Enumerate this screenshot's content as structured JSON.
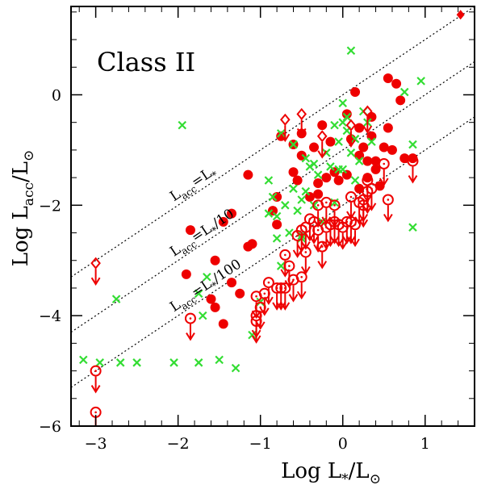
{
  "chart_data": {
    "type": "scatter",
    "title": "",
    "panel_label": "Class II",
    "xlabel": "Log L_*/L_⊙",
    "ylabel": "Log L_acc/L_⊙",
    "xlim": [
      -3.3,
      1.6
    ],
    "ylim": [
      -6.0,
      1.6
    ],
    "x_ticks": [
      -3,
      -2,
      -1,
      0,
      1
    ],
    "y_ticks": [
      -6,
      -4,
      -2,
      0
    ],
    "x_tick_labels": [
      "−3",
      "−2",
      "−1",
      "0",
      "1"
    ],
    "y_tick_labels": [
      "−6",
      "−4",
      "−2",
      "0"
    ],
    "grid": false,
    "reference_lines": [
      {
        "label_base": "L",
        "label_sub": "acc",
        "label_mid": "=L",
        "label_star": "*",
        "label_suffix": "",
        "offset": 0
      },
      {
        "label_base": "L",
        "label_sub": "acc",
        "label_mid": "=L",
        "label_star": "*",
        "label_suffix": "/10",
        "offset": -1
      },
      {
        "label_base": "L",
        "label_sub": "acc",
        "label_mid": "=L",
        "label_star": "*",
        "label_suffix": "/100",
        "offset": -2
      }
    ],
    "series": [
      {
        "marker": "filled-circle",
        "color": "#ee0000",
        "points": [
          [
            -0.75,
            -0.75
          ],
          [
            -0.6,
            -1.4
          ],
          [
            -0.5,
            -0.7
          ],
          [
            -0.3,
            -1.8
          ],
          [
            -0.25,
            -0.55
          ],
          [
            -0.2,
            -1.5
          ],
          [
            -0.15,
            -0.85
          ],
          [
            -0.1,
            -1.4
          ],
          [
            -0.05,
            -1.55
          ],
          [
            0.05,
            -0.35
          ],
          [
            0.1,
            -0.8
          ],
          [
            0.15,
            0.05
          ],
          [
            0.2,
            -1.1
          ],
          [
            0.25,
            -0.95
          ],
          [
            0.3,
            -1.2
          ],
          [
            0.35,
            -0.4
          ],
          [
            0.4,
            -1.2
          ],
          [
            0.45,
            -1.65
          ],
          [
            0.5,
            -0.95
          ],
          [
            0.55,
            0.3
          ],
          [
            0.6,
            -1.0
          ],
          [
            0.65,
            0.2
          ],
          [
            0.7,
            -0.1
          ],
          [
            0.75,
            -1.15
          ],
          [
            0.85,
            -1.15
          ],
          [
            -0.5,
            -1.1
          ],
          [
            -0.35,
            -0.95
          ],
          [
            0.2,
            -0.6
          ],
          [
            0.3,
            -1.5
          ],
          [
            -1.15,
            -1.45
          ],
          [
            -1.1,
            -2.7
          ],
          [
            -1.15,
            -2.75
          ],
          [
            -1.35,
            -2.15
          ],
          [
            -1.45,
            -2.3
          ],
          [
            -1.35,
            -3.4
          ],
          [
            -1.55,
            -3.0
          ],
          [
            -1.6,
            -3.7
          ],
          [
            -1.55,
            -3.85
          ],
          [
            -1.9,
            -3.25
          ],
          [
            -1.85,
            -2.45
          ],
          [
            -1.25,
            -3.6
          ],
          [
            -1.45,
            -4.15
          ],
          [
            -0.8,
            -1.85
          ],
          [
            -0.8,
            -2.35
          ],
          [
            -0.55,
            -1.55
          ],
          [
            -0.85,
            -2.1
          ],
          [
            0.05,
            -1.45
          ],
          [
            0.2,
            -1.7
          ],
          [
            -0.3,
            -1.6
          ],
          [
            -0.4,
            -1.85
          ],
          [
            0.4,
            -1.35
          ],
          [
            -0.6,
            -0.9
          ],
          [
            0.35,
            -0.75
          ],
          [
            0.55,
            -0.6
          ]
        ]
      },
      {
        "marker": "cross",
        "color": "#33dd33",
        "points": [
          [
            -3.15,
            -4.8
          ],
          [
            -2.95,
            -4.85
          ],
          [
            -2.75,
            -3.7
          ],
          [
            -2.7,
            -4.85
          ],
          [
            -2.5,
            -4.85
          ],
          [
            -2.05,
            -4.85
          ],
          [
            -1.75,
            -4.85
          ],
          [
            -1.5,
            -4.8
          ],
          [
            -1.3,
            -4.95
          ],
          [
            -1.95,
            -0.55
          ],
          [
            -1.75,
            -3.6
          ],
          [
            -1.7,
            -4.0
          ],
          [
            -1.65,
            -3.3
          ],
          [
            -1.1,
            -4.35
          ],
          [
            -1.0,
            -3.75
          ],
          [
            -0.9,
            -1.55
          ],
          [
            -0.9,
            -2.15
          ],
          [
            -0.85,
            -1.85
          ],
          [
            -0.8,
            -2.6
          ],
          [
            -0.75,
            -3.1
          ],
          [
            -0.7,
            -2.0
          ],
          [
            -0.65,
            -2.5
          ],
          [
            -0.6,
            -1.7
          ],
          [
            -0.55,
            -2.1
          ],
          [
            -0.5,
            -2.6
          ],
          [
            -0.5,
            -2.55
          ],
          [
            -0.45,
            -1.75
          ],
          [
            -0.4,
            -1.3
          ],
          [
            -0.35,
            -2.0
          ],
          [
            -0.3,
            -1.45
          ],
          [
            -0.25,
            -2.3
          ],
          [
            -0.2,
            -1.05
          ],
          [
            -0.15,
            -1.3
          ],
          [
            -0.1,
            -0.55
          ],
          [
            -0.05,
            -1.35
          ],
          [
            -0.05,
            -0.85
          ],
          [
            0.0,
            -1.35
          ],
          [
            0.0,
            -0.15
          ],
          [
            0.05,
            -0.4
          ],
          [
            0.05,
            -0.65
          ],
          [
            0.1,
            -1.05
          ],
          [
            0.15,
            -0.8
          ],
          [
            0.15,
            -1.55
          ],
          [
            0.25,
            -0.3
          ],
          [
            0.3,
            -0.5
          ],
          [
            0.35,
            -0.85
          ],
          [
            0.1,
            0.8
          ],
          [
            0.2,
            -1.2
          ],
          [
            0.75,
            0.05
          ],
          [
            0.85,
            -0.9
          ],
          [
            0.85,
            -2.4
          ],
          [
            -0.6,
            -0.9
          ],
          [
            -0.75,
            -0.7
          ],
          [
            -0.45,
            -1.15
          ],
          [
            -0.35,
            -1.25
          ],
          [
            -0.8,
            -2.2
          ],
          [
            0.0,
            -0.5
          ],
          [
            0.95,
            0.25
          ],
          [
            -0.5,
            -1.9
          ],
          [
            -0.1,
            -1.95
          ]
        ]
      },
      {
        "marker": "open-circle-upper-limit",
        "color": "#ee0000",
        "points": [
          [
            -3.0,
            -5.0
          ],
          [
            -3.0,
            -5.75
          ],
          [
            -1.85,
            -4.05
          ],
          [
            -1.05,
            -3.65
          ],
          [
            -1.05,
            -4.0
          ],
          [
            -1.05,
            -4.1
          ],
          [
            -1.0,
            -3.85
          ],
          [
            -0.95,
            -3.6
          ],
          [
            -0.9,
            -3.4
          ],
          [
            -0.8,
            -3.5
          ],
          [
            -0.75,
            -3.5
          ],
          [
            -0.7,
            -3.5
          ],
          [
            -0.7,
            -2.9
          ],
          [
            -0.65,
            -3.1
          ],
          [
            -0.6,
            -3.35
          ],
          [
            -0.55,
            -2.55
          ],
          [
            -0.5,
            -3.3
          ],
          [
            -0.45,
            -2.85
          ],
          [
            -0.45,
            -2.4
          ],
          [
            -0.4,
            -2.25
          ],
          [
            -0.3,
            -2.45
          ],
          [
            -0.3,
            -2.0
          ],
          [
            -0.25,
            -2.75
          ],
          [
            -0.2,
            -2.4
          ],
          [
            -0.2,
            -1.95
          ],
          [
            -0.15,
            -2.35
          ],
          [
            -0.1,
            -2.3
          ],
          [
            -0.1,
            -2.0
          ],
          [
            -0.05,
            -2.35
          ],
          [
            0.0,
            -2.4
          ],
          [
            0.05,
            -2.3
          ],
          [
            0.1,
            -2.3
          ],
          [
            0.1,
            -1.85
          ],
          [
            0.15,
            -2.35
          ],
          [
            0.2,
            -1.95
          ],
          [
            0.25,
            -1.9
          ],
          [
            0.3,
            -1.55
          ],
          [
            0.3,
            -1.75
          ],
          [
            0.35,
            -1.7
          ],
          [
            0.5,
            -1.25
          ],
          [
            0.55,
            -1.9
          ],
          [
            0.85,
            -1.2
          ],
          [
            -0.5,
            -2.45
          ],
          [
            -0.35,
            -2.3
          ],
          [
            0.25,
            -2.0
          ]
        ]
      },
      {
        "marker": "open-diamond-upper-limit",
        "color": "#ee0000",
        "points": [
          [
            -3.0,
            -3.05
          ],
          [
            -0.7,
            -0.45
          ],
          [
            -0.5,
            -0.35
          ],
          [
            -0.25,
            -0.75
          ],
          [
            0.1,
            -0.55
          ],
          [
            0.3,
            -0.3
          ]
        ]
      },
      {
        "marker": "filled-diamond",
        "color": "#ee0000",
        "points": [
          [
            1.43,
            1.45
          ]
        ]
      }
    ]
  }
}
